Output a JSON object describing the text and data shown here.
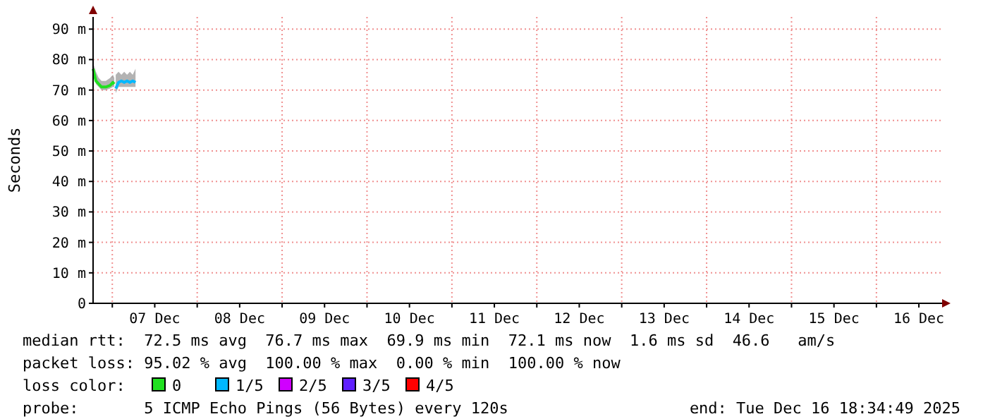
{
  "chart_data": {
    "type": "line",
    "ylabel": "Seconds",
    "legend_title": "loss color:",
    "legend": "bottom",
    "grid": true,
    "xlim": [
      "2025-12-06T18:34",
      "2025-12-16T18:34"
    ],
    "xticks": [
      {
        "value": "2025-12-07T00:00",
        "label": null
      },
      {
        "value": "2025-12-07T12:00",
        "label": "07 Dec"
      },
      {
        "value": "2025-12-08T00:00",
        "label": null
      },
      {
        "value": "2025-12-08T12:00",
        "label": "08 Dec"
      },
      {
        "value": "2025-12-09T00:00",
        "label": null
      },
      {
        "value": "2025-12-09T12:00",
        "label": "09 Dec"
      },
      {
        "value": "2025-12-10T00:00",
        "label": null
      },
      {
        "value": "2025-12-10T12:00",
        "label": "10 Dec"
      },
      {
        "value": "2025-12-11T00:00",
        "label": null
      },
      {
        "value": "2025-12-11T12:00",
        "label": "11 Dec"
      },
      {
        "value": "2025-12-12T00:00",
        "label": null
      },
      {
        "value": "2025-12-12T12:00",
        "label": "12 Dec"
      },
      {
        "value": "2025-12-13T00:00",
        "label": null
      },
      {
        "value": "2025-12-13T12:00",
        "label": "13 Dec"
      },
      {
        "value": "2025-12-14T00:00",
        "label": null
      },
      {
        "value": "2025-12-14T12:00",
        "label": "14 Dec"
      },
      {
        "value": "2025-12-15T00:00",
        "label": null
      },
      {
        "value": "2025-12-15T12:00",
        "label": "15 Dec"
      },
      {
        "value": "2025-12-16T00:00",
        "label": null
      },
      {
        "value": "2025-12-16T12:00",
        "label": "16 Dec"
      }
    ],
    "ylim": [
      0,
      94
    ],
    "yticks": [
      0,
      {
        "value": 10,
        "label": "10 m"
      },
      {
        "value": 20,
        "label": "20 m"
      },
      {
        "value": 30,
        "label": "30 m"
      },
      {
        "value": 40,
        "label": "40 m"
      },
      {
        "value": 50,
        "label": "50 m"
      },
      {
        "value": 60,
        "label": "60 m"
      },
      {
        "value": 70,
        "label": "70 m"
      },
      {
        "value": 80,
        "label": "80 m"
      },
      {
        "value": 90,
        "label": "90 m"
      }
    ],
    "series": [
      {
        "name": "0",
        "color": "#20e020",
        "x": [
          "2025-12-06T18:34",
          "2025-12-06T19:22",
          "2025-12-06T20:10",
          "2025-12-06T20:58",
          "2025-12-06T22:10",
          "2025-12-06T23:22",
          "2025-12-07T00:10",
          "2025-12-07T00:34"
        ],
        "values": [
          77,
          73,
          72,
          71,
          71,
          71.5,
          72.5,
          72
        ],
        "lower": [
          75,
          72,
          71,
          70,
          70,
          70.5,
          71,
          71
        ],
        "upper": [
          79,
          76,
          74,
          73,
          73,
          74,
          75,
          74
        ]
      },
      {
        "name": "1/5",
        "color": "#00b8ff",
        "x": [
          "2025-12-07T00:58",
          "2025-12-07T01:46",
          "2025-12-07T02:34",
          "2025-12-07T03:22",
          "2025-12-07T04:10",
          "2025-12-07T04:58",
          "2025-12-07T05:46",
          "2025-12-07T06:34"
        ],
        "values": [
          70.5,
          72.5,
          73,
          72.5,
          73,
          72.5,
          73,
          72.5
        ],
        "lower": [
          69,
          71,
          71,
          71,
          71,
          71,
          71,
          71
        ],
        "upper": [
          75,
          76,
          75,
          76,
          75,
          76,
          75,
          77
        ]
      },
      {
        "name": "2/5",
        "color": "#d000ff"
      },
      {
        "name": "3/5",
        "color": "#6020ff"
      },
      {
        "name": "4/5",
        "color": "#ff0000"
      }
    ],
    "annotations": [
      "median rtt:  72.5 ms avg  76.7 ms max  69.9 ms min  72.1 ms now  1.6 ms sd  46.6   am/s",
      "packet loss: 95.02 % avg  100.00 % max  0.00 % min  100.00 % now",
      "probe:       5 ICMP Echo Pings (56 Bytes) every 120s",
      "end: Tue Dec 16 18:34:49 2025"
    ]
  }
}
